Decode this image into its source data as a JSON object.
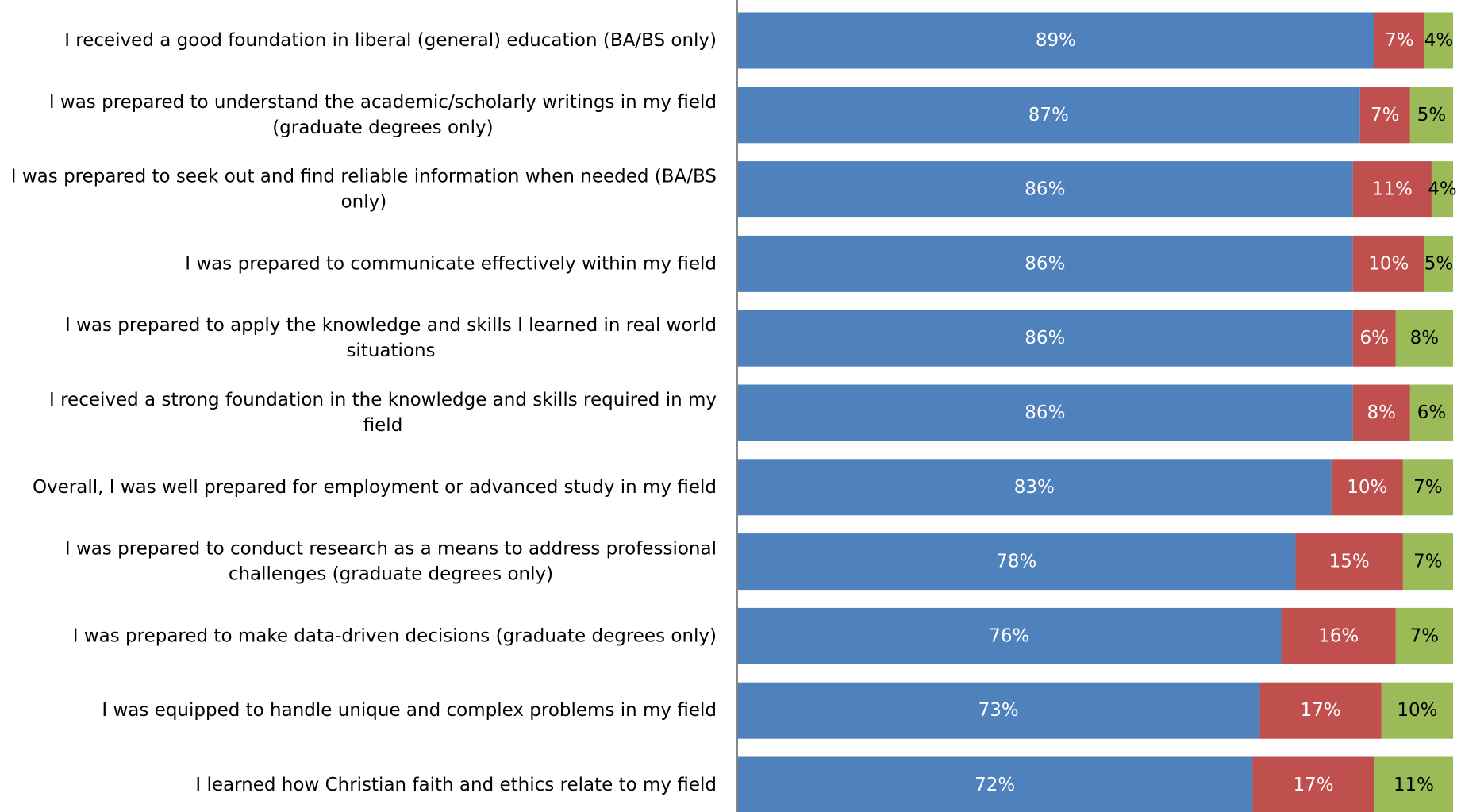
{
  "chart_data": {
    "type": "bar",
    "orientation": "horizontal",
    "stacked": true,
    "percent_stacked": true,
    "title": "",
    "xlabel": "",
    "ylabel": "",
    "xlim": [
      0,
      100
    ],
    "grid": false,
    "legend": "none",
    "categories": [
      "I received a good foundation in liberal (general) education (BA/BS only)",
      "I was prepared to understand the academic/scholarly writings in my field (graduate degrees only)",
      "I was prepared to seek out and find reliable information when needed (BA/BS only)",
      "I was prepared to communicate effectively within my field",
      "I was prepared to apply the knowledge and skills I learned in real world situations",
      "I received a strong foundation in the knowledge and skills required in my field",
      "Overall, I was well prepared for employment or advanced study in my field",
      "I was prepared to conduct research as a means to address professional challenges (graduate degrees only)",
      "I was prepared to make data-driven decisions (graduate degrees only)",
      "I was equipped to handle unique and complex problems in my field",
      "I learned how Christian faith and ethics relate to my field"
    ],
    "series": [
      {
        "color": "#4f81bd",
        "label_color": "#ffffff",
        "values": [
          89,
          87,
          86,
          86,
          86,
          86,
          83,
          78,
          76,
          73,
          72
        ],
        "labels": [
          "89%",
          "87%",
          "86%",
          "86%",
          "86%",
          "86%",
          "83%",
          "78%",
          "76%",
          "73%",
          "72%"
        ]
      },
      {
        "color": "#c0504d",
        "label_color": "#ffffff",
        "values": [
          7,
          7,
          11,
          10,
          6,
          8,
          10,
          15,
          16,
          17,
          17
        ],
        "labels": [
          "7%",
          "7%",
          "11%",
          "10%",
          "6%",
          "8%",
          "10%",
          "15%",
          "16%",
          "17%",
          "17%"
        ]
      },
      {
        "color": "#9bbb59",
        "label_color": "#000000",
        "values": [
          4,
          5,
          4,
          5,
          8,
          6,
          7,
          7,
          7,
          10,
          11
        ],
        "labels": [
          "4%",
          "5%",
          "4%",
          "5%",
          "8%",
          "6%",
          "7%",
          "7%",
          "7%",
          "10%",
          "11%"
        ]
      }
    ]
  }
}
